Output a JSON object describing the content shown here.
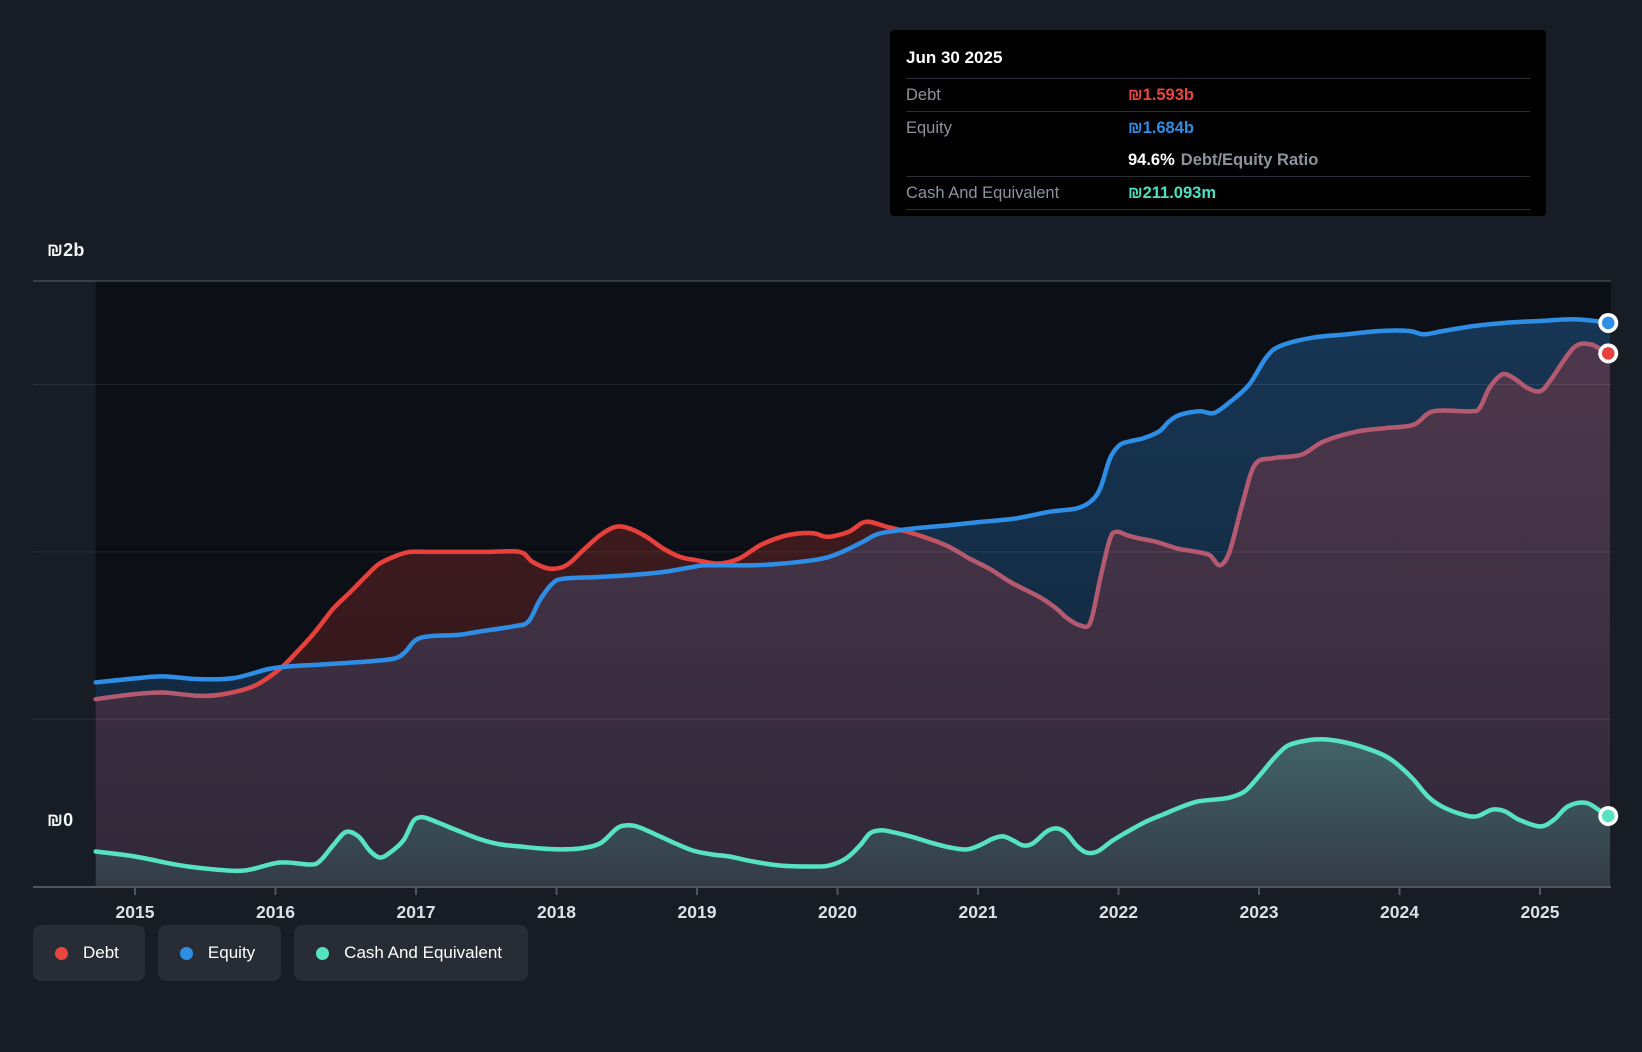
{
  "y_axis": {
    "top_label": "₪2b",
    "zero_label": "₪0"
  },
  "tooltip": {
    "date": "Jun 30 2025",
    "debt_label": "Debt",
    "debt_value": "₪1.593b",
    "equity_label": "Equity",
    "equity_value": "₪1.684b",
    "ratio_value": "94.6%",
    "ratio_label": "Debt/Equity Ratio",
    "cash_label": "Cash And Equivalent",
    "cash_value": "₪211.093m"
  },
  "legend": {
    "items": [
      {
        "id": "debt",
        "label": "Debt",
        "color": "#e8473f"
      },
      {
        "id": "equity",
        "label": "Equity",
        "color": "#2e8de4"
      },
      {
        "id": "cash",
        "label": "Cash And Equivalent",
        "color": "#57e2c2"
      }
    ]
  },
  "chart_data": {
    "type": "area",
    "unit": "₪ billions",
    "xlim": [
      2014.72,
      2025.5
    ],
    "ylim": [
      0,
      2
    ],
    "x_ticks": [
      2015,
      2016,
      2017,
      2018,
      2019,
      2020,
      2021,
      2022,
      2023,
      2024,
      2025
    ],
    "y_gridline_values": [
      0.5,
      1.0,
      1.5
    ],
    "legend_position": "bottom-left",
    "colors": {
      "debt_above_equity": "#e8413c",
      "debt_below_equity": "#b45a70",
      "equity": "#2e8de4",
      "cash": "#57e2c2"
    },
    "series": [
      {
        "name": "Debt",
        "points": [
          [
            2014.72,
            0.56
          ],
          [
            2015.0,
            0.575
          ],
          [
            2015.2,
            0.58
          ],
          [
            2015.45,
            0.57
          ],
          [
            2015.63,
            0.575
          ],
          [
            2015.85,
            0.6
          ],
          [
            2016.03,
            0.65
          ],
          [
            2016.15,
            0.7
          ],
          [
            2016.28,
            0.76
          ],
          [
            2016.41,
            0.83
          ],
          [
            2016.52,
            0.875
          ],
          [
            2016.65,
            0.93
          ],
          [
            2016.74,
            0.965
          ],
          [
            2016.87,
            0.99
          ],
          [
            2016.96,
            1.0
          ],
          [
            2017.1,
            1.0
          ],
          [
            2017.31,
            1.0
          ],
          [
            2017.52,
            1.0
          ],
          [
            2017.74,
            1.0
          ],
          [
            2017.83,
            0.97
          ],
          [
            2017.95,
            0.95
          ],
          [
            2018.07,
            0.96
          ],
          [
            2018.19,
            1.005
          ],
          [
            2018.31,
            1.05
          ],
          [
            2018.42,
            1.075
          ],
          [
            2018.52,
            1.07
          ],
          [
            2018.64,
            1.045
          ],
          [
            2018.76,
            1.01
          ],
          [
            2018.88,
            0.985
          ],
          [
            2019.0,
            0.975
          ],
          [
            2019.15,
            0.965
          ],
          [
            2019.3,
            0.98
          ],
          [
            2019.45,
            1.02
          ],
          [
            2019.6,
            1.045
          ],
          [
            2019.72,
            1.055
          ],
          [
            2019.84,
            1.055
          ],
          [
            2019.93,
            1.045
          ],
          [
            2020.08,
            1.06
          ],
          [
            2020.2,
            1.09
          ],
          [
            2020.35,
            1.075
          ],
          [
            2020.54,
            1.055
          ],
          [
            2020.77,
            1.02
          ],
          [
            2020.94,
            0.98
          ],
          [
            2021.08,
            0.95
          ],
          [
            2021.23,
            0.91
          ],
          [
            2021.37,
            0.88
          ],
          [
            2021.46,
            0.86
          ],
          [
            2021.56,
            0.83
          ],
          [
            2021.64,
            0.8
          ],
          [
            2021.73,
            0.78
          ],
          [
            2021.8,
            0.79
          ],
          [
            2021.87,
            0.92
          ],
          [
            2021.94,
            1.04
          ],
          [
            2021.99,
            1.06
          ],
          [
            2022.06,
            1.05
          ],
          [
            2022.15,
            1.04
          ],
          [
            2022.27,
            1.03
          ],
          [
            2022.42,
            1.01
          ],
          [
            2022.56,
            1.0
          ],
          [
            2022.65,
            0.99
          ],
          [
            2022.72,
            0.96
          ],
          [
            2022.79,
            1.0
          ],
          [
            2022.88,
            1.14
          ],
          [
            2022.97,
            1.26
          ],
          [
            2023.1,
            1.28
          ],
          [
            2023.3,
            1.29
          ],
          [
            2023.46,
            1.33
          ],
          [
            2023.7,
            1.36
          ],
          [
            2023.9,
            1.37
          ],
          [
            2024.1,
            1.38
          ],
          [
            2024.24,
            1.42
          ],
          [
            2024.5,
            1.42
          ],
          [
            2024.57,
            1.43
          ],
          [
            2024.64,
            1.49
          ],
          [
            2024.73,
            1.53
          ],
          [
            2024.81,
            1.52
          ],
          [
            2024.91,
            1.49
          ],
          [
            2025.0,
            1.48
          ],
          [
            2025.07,
            1.51
          ],
          [
            2025.24,
            1.61
          ],
          [
            2025.36,
            1.62
          ],
          [
            2025.45,
            1.6
          ],
          [
            2025.5,
            1.593
          ]
        ]
      },
      {
        "name": "Equity",
        "points": [
          [
            2014.72,
            0.61
          ],
          [
            2015.0,
            0.622
          ],
          [
            2015.2,
            0.628
          ],
          [
            2015.45,
            0.62
          ],
          [
            2015.7,
            0.623
          ],
          [
            2015.95,
            0.65
          ],
          [
            2016.1,
            0.658
          ],
          [
            2016.3,
            0.663
          ],
          [
            2016.5,
            0.668
          ],
          [
            2016.7,
            0.674
          ],
          [
            2016.85,
            0.682
          ],
          [
            2016.92,
            0.7
          ],
          [
            2017.0,
            0.737
          ],
          [
            2017.1,
            0.748
          ],
          [
            2017.3,
            0.752
          ],
          [
            2017.45,
            0.762
          ],
          [
            2017.7,
            0.778
          ],
          [
            2017.8,
            0.792
          ],
          [
            2017.88,
            0.855
          ],
          [
            2017.97,
            0.905
          ],
          [
            2018.05,
            0.92
          ],
          [
            2018.3,
            0.925
          ],
          [
            2018.5,
            0.93
          ],
          [
            2018.76,
            0.94
          ],
          [
            2018.97,
            0.955
          ],
          [
            2019.07,
            0.96
          ],
          [
            2019.4,
            0.96
          ],
          [
            2019.6,
            0.965
          ],
          [
            2019.82,
            0.975
          ],
          [
            2019.94,
            0.985
          ],
          [
            2020.06,
            1.005
          ],
          [
            2020.18,
            1.03
          ],
          [
            2020.3,
            1.055
          ],
          [
            2020.54,
            1.07
          ],
          [
            2020.8,
            1.08
          ],
          [
            2021.03,
            1.09
          ],
          [
            2021.27,
            1.1
          ],
          [
            2021.51,
            1.12
          ],
          [
            2021.7,
            1.13
          ],
          [
            2021.8,
            1.15
          ],
          [
            2021.87,
            1.19
          ],
          [
            2021.94,
            1.28
          ],
          [
            2022.01,
            1.32
          ],
          [
            2022.08,
            1.33
          ],
          [
            2022.18,
            1.34
          ],
          [
            2022.29,
            1.36
          ],
          [
            2022.36,
            1.39
          ],
          [
            2022.44,
            1.41
          ],
          [
            2022.58,
            1.42
          ],
          [
            2022.68,
            1.415
          ],
          [
            2022.8,
            1.45
          ],
          [
            2022.93,
            1.5
          ],
          [
            2023.05,
            1.58
          ],
          [
            2023.15,
            1.615
          ],
          [
            2023.38,
            1.64
          ],
          [
            2023.62,
            1.65
          ],
          [
            2023.86,
            1.66
          ],
          [
            2024.07,
            1.66
          ],
          [
            2024.17,
            1.65
          ],
          [
            2024.31,
            1.66
          ],
          [
            2024.53,
            1.675
          ],
          [
            2024.77,
            1.685
          ],
          [
            2025.0,
            1.69
          ],
          [
            2025.24,
            1.695
          ],
          [
            2025.43,
            1.688
          ],
          [
            2025.5,
            1.684
          ]
        ]
      },
      {
        "name": "Cash And Equivalent",
        "points": [
          [
            2014.72,
            0.105
          ],
          [
            2015.0,
            0.09
          ],
          [
            2015.3,
            0.065
          ],
          [
            2015.55,
            0.052
          ],
          [
            2015.78,
            0.048
          ],
          [
            2016.03,
            0.072
          ],
          [
            2016.25,
            0.066
          ],
          [
            2016.32,
            0.078
          ],
          [
            2016.41,
            0.123
          ],
          [
            2016.5,
            0.163
          ],
          [
            2016.59,
            0.15
          ],
          [
            2016.67,
            0.108
          ],
          [
            2016.74,
            0.087
          ],
          [
            2016.81,
            0.1
          ],
          [
            2016.91,
            0.138
          ],
          [
            2016.98,
            0.195
          ],
          [
            2017.03,
            0.207
          ],
          [
            2017.08,
            0.204
          ],
          [
            2017.17,
            0.189
          ],
          [
            2017.31,
            0.165
          ],
          [
            2017.46,
            0.141
          ],
          [
            2017.6,
            0.126
          ],
          [
            2017.74,
            0.12
          ],
          [
            2017.88,
            0.114
          ],
          [
            2018.03,
            0.111
          ],
          [
            2018.17,
            0.114
          ],
          [
            2018.31,
            0.129
          ],
          [
            2018.43,
            0.174
          ],
          [
            2018.5,
            0.183
          ],
          [
            2018.57,
            0.18
          ],
          [
            2018.69,
            0.159
          ],
          [
            2018.83,
            0.132
          ],
          [
            2018.97,
            0.108
          ],
          [
            2019.11,
            0.096
          ],
          [
            2019.23,
            0.09
          ],
          [
            2019.4,
            0.075
          ],
          [
            2019.59,
            0.063
          ],
          [
            2019.82,
            0.06
          ],
          [
            2019.94,
            0.063
          ],
          [
            2020.06,
            0.084
          ],
          [
            2020.16,
            0.123
          ],
          [
            2020.23,
            0.159
          ],
          [
            2020.3,
            0.168
          ],
          [
            2020.37,
            0.165
          ],
          [
            2020.52,
            0.15
          ],
          [
            2020.66,
            0.132
          ],
          [
            2020.8,
            0.117
          ],
          [
            2020.92,
            0.111
          ],
          [
            2021.01,
            0.123
          ],
          [
            2021.11,
            0.144
          ],
          [
            2021.18,
            0.15
          ],
          [
            2021.25,
            0.138
          ],
          [
            2021.32,
            0.123
          ],
          [
            2021.39,
            0.129
          ],
          [
            2021.49,
            0.165
          ],
          [
            2021.56,
            0.174
          ],
          [
            2021.63,
            0.159
          ],
          [
            2021.7,
            0.123
          ],
          [
            2021.77,
            0.102
          ],
          [
            2021.85,
            0.105
          ],
          [
            2021.96,
            0.138
          ],
          [
            2022.08,
            0.168
          ],
          [
            2022.2,
            0.195
          ],
          [
            2022.32,
            0.216
          ],
          [
            2022.44,
            0.237
          ],
          [
            2022.56,
            0.254
          ],
          [
            2022.68,
            0.26
          ],
          [
            2022.79,
            0.266
          ],
          [
            2022.9,
            0.285
          ],
          [
            2023.0,
            0.33
          ],
          [
            2023.1,
            0.38
          ],
          [
            2023.2,
            0.42
          ],
          [
            2023.32,
            0.435
          ],
          [
            2023.45,
            0.44
          ],
          [
            2023.6,
            0.432
          ],
          [
            2023.75,
            0.415
          ],
          [
            2023.9,
            0.39
          ],
          [
            2024.0,
            0.36
          ],
          [
            2024.1,
            0.32
          ],
          [
            2024.2,
            0.27
          ],
          [
            2024.3,
            0.24
          ],
          [
            2024.45,
            0.215
          ],
          [
            2024.55,
            0.21
          ],
          [
            2024.66,
            0.23
          ],
          [
            2024.75,
            0.225
          ],
          [
            2024.85,
            0.2
          ],
          [
            2025.0,
            0.18
          ],
          [
            2025.1,
            0.2
          ],
          [
            2025.2,
            0.24
          ],
          [
            2025.33,
            0.25
          ],
          [
            2025.45,
            0.22
          ],
          [
            2025.5,
            0.211
          ]
        ]
      }
    ]
  }
}
